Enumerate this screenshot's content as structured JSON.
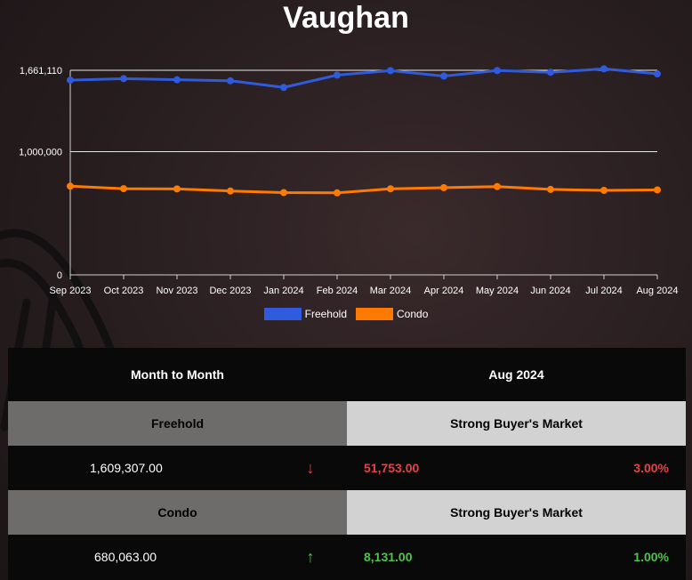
{
  "title": "Vaughan",
  "chart_data": {
    "type": "line",
    "categories": [
      "Sep 2023",
      "Oct 2023",
      "Nov 2023",
      "Dec 2023",
      "Jan 2024",
      "Feb 2024",
      "Mar 2024",
      "Apr 2024",
      "May 2024",
      "Jun 2024",
      "Jul 2024",
      "Aug 2024"
    ],
    "series": [
      {
        "name": "Freehold",
        "color": "#2f5bdc",
        "values": [
          1581000,
          1593000,
          1584000,
          1576000,
          1522000,
          1622000,
          1658000,
          1614000,
          1659000,
          1645000,
          1673000,
          1632000
        ]
      },
      {
        "name": "Condo",
        "color": "#ff7a00",
        "values": [
          720000,
          700000,
          698000,
          681000,
          668000,
          666000,
          699000,
          708000,
          717000,
          694000,
          686000,
          690000
        ]
      }
    ],
    "ylim": [
      0,
      1661110
    ],
    "yticks": [
      0,
      1000000,
      1661110
    ],
    "ytick_labels": [
      "0",
      "1,000,000",
      "1,661,110"
    ],
    "legend_position": "bottom",
    "grid": true
  },
  "legend": {
    "freehold": "Freehold",
    "condo": "Condo"
  },
  "table": {
    "header_left": "Month to Month",
    "header_right": "Aug 2024",
    "freehold": {
      "label": "Freehold",
      "market": "Strong Buyer's Market",
      "value": "1,609,307.00",
      "arrow": "↓",
      "change": "51,753.00",
      "percent": "3.00%"
    },
    "condo": {
      "label": "Condo",
      "market": "Strong Buyer's Market",
      "value": "680,063.00",
      "arrow": "↑",
      "change": "8,131.00",
      "percent": "1.00%"
    }
  }
}
